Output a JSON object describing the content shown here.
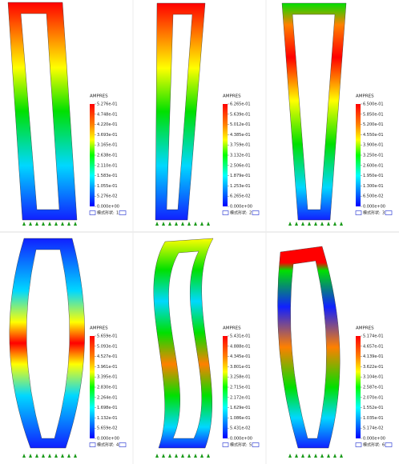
{
  "panels": [
    {
      "label": "AMPRES",
      "ticks": [
        "5.276e-01",
        "4.748e-01",
        "4.220e-01",
        "3.693e-01",
        "3.165e-01",
        "2.638e-01",
        "2.110e-01",
        "1.583e-01",
        "1.055e-01",
        "5.276e-02",
        "0.000e+00"
      ],
      "mode_label": "模式形状:",
      "mode": "1"
    },
    {
      "label": "AMPRES",
      "ticks": [
        "6.265e-01",
        "5.639e-01",
        "5.012e-01",
        "4.385e-01",
        "3.759e-01",
        "3.132e-01",
        "2.506e-01",
        "1.879e-01",
        "1.253e-01",
        "6.265e-02",
        "0.000e+00"
      ],
      "mode_label": "模式形状:",
      "mode": "2"
    },
    {
      "label": "AMPRES",
      "ticks": [
        "6.500e-01",
        "5.850e-01",
        "5.200e-01",
        "4.550e-01",
        "3.900e-01",
        "3.250e-01",
        "2.600e-01",
        "1.950e-01",
        "1.300e-01",
        "6.500e-02",
        "0.000e+00"
      ],
      "mode_label": "模式形状:",
      "mode": "3"
    },
    {
      "label": "AMPRES",
      "ticks": [
        "5.659e-01",
        "5.093e-01",
        "4.527e-01",
        "3.961e-01",
        "3.395e-01",
        "2.830e-01",
        "2.264e-01",
        "1.698e-01",
        "1.132e-01",
        "5.659e-02",
        "0.000e+00"
      ],
      "mode_label": "模式形状:",
      "mode": "4"
    },
    {
      "label": "AMPRES",
      "ticks": [
        "5.431e-01",
        "4.888e-01",
        "4.345e-01",
        "3.801e-01",
        "3.258e-01",
        "2.715e-01",
        "2.172e-01",
        "1.629e-01",
        "1.086e-01",
        "5.431e-02",
        "0.000e+00"
      ],
      "mode_label": "模式形状:",
      "mode": "5"
    },
    {
      "label": "AMPRES",
      "ticks": [
        "5.174e-01",
        "4.657e-01",
        "4.139e-01",
        "3.622e-01",
        "3.104e-01",
        "2.587e-01",
        "2.070e-01",
        "1.552e-01",
        "1.035e-01",
        "5.174e-02",
        "0.000e+00"
      ],
      "mode_label": "模式形状:",
      "mode": "6"
    }
  ]
}
